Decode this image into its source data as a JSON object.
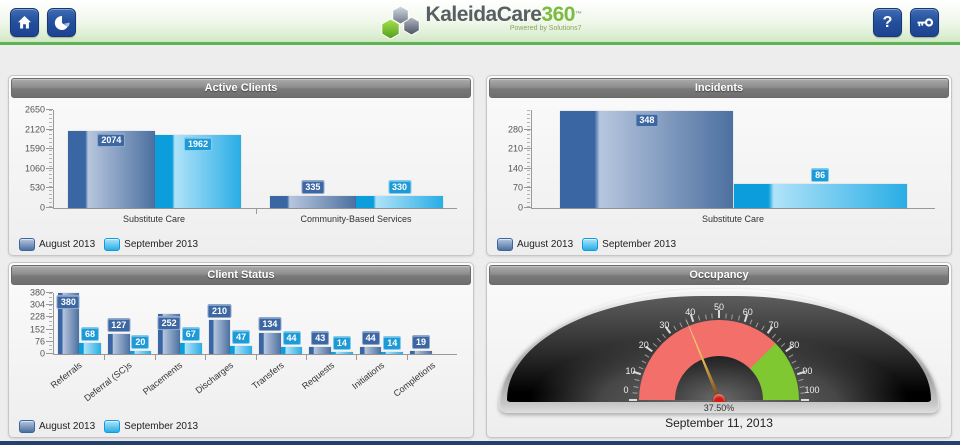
{
  "header": {
    "icons": {
      "left": [
        "home-icon",
        "pie-chart-icon"
      ],
      "right": [
        "help-icon",
        "key-icon"
      ]
    },
    "help_label": "?",
    "logo": {
      "brand": "KaleidaCare",
      "suffix": "360",
      "trademark": "™",
      "tagline": "Powered by Solutions7"
    }
  },
  "colors": {
    "header_line_green": "#5eb354",
    "button_navy": "#24509d",
    "logo_green": "#7cbb3f",
    "footer_navy": "#23406f"
  },
  "series_styles": [
    {
      "name": "August 2013",
      "edge": "#3a67a4",
      "light": "#b7c6de",
      "dark": "#4c70a0",
      "label_bg": "#3d67a3",
      "label_border": "#8fa9cc"
    },
    {
      "name": "September 2013",
      "edge": "#0c9edc",
      "light": "#b0e3f9",
      "dark": "#29ade5",
      "label_bg": "#1e9bd7",
      "label_border": "#7fcdf0"
    }
  ],
  "chart_data": [
    {
      "id": "active_clients",
      "type": "bar",
      "title": "Active Clients",
      "categories": [
        "Substitute Care",
        "Community-Based Services"
      ],
      "series": [
        {
          "name": "August 2013",
          "values": [
            2074,
            335
          ]
        },
        {
          "name": "September 2013",
          "values": [
            1962,
            330
          ]
        }
      ],
      "ylim": [
        0,
        2650
      ],
      "yticks": [
        0,
        530,
        1060,
        1590,
        2120,
        2650
      ],
      "grid": false,
      "legend_position": "bottom-left"
    },
    {
      "id": "incidents",
      "type": "bar",
      "title": "Incidents",
      "categories": [
        "Substitute Care"
      ],
      "series": [
        {
          "name": "August 2013",
          "values": [
            348
          ]
        },
        {
          "name": "September 2013",
          "values": [
            86
          ]
        }
      ],
      "ylim": [
        0,
        350
      ],
      "yticks": [
        0,
        70,
        140,
        210,
        280
      ],
      "grid": false,
      "legend_position": "bottom-left"
    },
    {
      "id": "client_status",
      "type": "bar",
      "title": "Client Status",
      "categories": [
        "Referrals",
        "Deferral (SC)s",
        "Placements",
        "Discharges",
        "Transfers",
        "Requests",
        "Initiations",
        "Completions"
      ],
      "series": [
        {
          "name": "August 2013",
          "values": [
            380,
            127,
            252,
            210,
            134,
            43,
            44,
            19
          ]
        },
        {
          "name": "September 2013",
          "values": [
            68,
            20,
            67,
            47,
            44,
            14,
            14,
            null
          ]
        }
      ],
      "ylim": [
        0,
        380
      ],
      "yticks": [
        0,
        76,
        152,
        228,
        304,
        380
      ],
      "grid": false,
      "legend_position": "bottom-left",
      "xlabel_rotation": -38
    },
    {
      "id": "occupancy",
      "type": "gauge",
      "title": "Occupancy",
      "min": 0,
      "max": 100,
      "ticks": [
        0,
        10,
        20,
        30,
        40,
        50,
        60,
        70,
        80,
        90,
        100
      ],
      "zones": {
        "red": [
          0,
          75
        ],
        "green": [
          75,
          100
        ]
      },
      "value": 37.5,
      "value_label": "37.50%",
      "date_label": "September 11, 2013",
      "colors": {
        "red": "#f3706a",
        "green": "#7fc832",
        "needle_tip": "#f3e6ae",
        "needle": "#dfb54e",
        "needle_base": "#6e3a14",
        "hub": "#cf1d11"
      }
    }
  ]
}
